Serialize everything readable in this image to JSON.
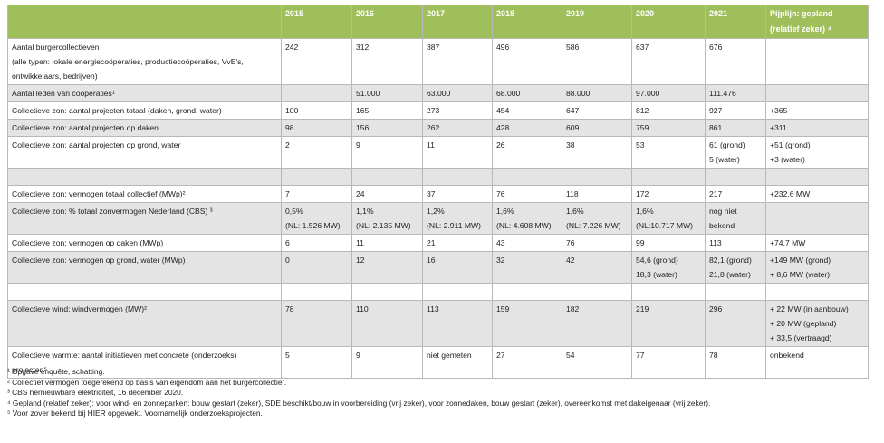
{
  "table": {
    "header": [
      null,
      "2015",
      "2016",
      "2017",
      "2018",
      "2019",
      "2020",
      "2021",
      "Pijplijn: gepland (relatief zeker) ⁴"
    ],
    "rows": [
      [
        [
          "Aantal burgercollectieven",
          "(alle typen: lokale energiecoöperaties, productiecoöperaties, VvE's,",
          "ontwikkelaars, bedrijven)"
        ],
        [
          "242"
        ],
        [
          "312"
        ],
        [
          "387"
        ],
        [
          "496"
        ],
        [
          "586"
        ],
        [
          "637"
        ],
        [
          "676"
        ],
        null
      ],
      [
        [
          "Aantal leden van coöperaties¹"
        ],
        null,
        [
          "51.000"
        ],
        [
          "63.000"
        ],
        [
          "68.000"
        ],
        [
          "88.000"
        ],
        [
          "97.000"
        ],
        [
          "111.476"
        ],
        null
      ],
      [
        [
          "Collectieve zon: aantal projecten totaal (daken, grond, water)"
        ],
        [
          "100"
        ],
        [
          "165"
        ],
        [
          "273"
        ],
        [
          "454"
        ],
        [
          "647"
        ],
        [
          "812"
        ],
        [
          "927"
        ],
        [
          "+365"
        ]
      ],
      [
        [
          "Collectieve zon: aantal projecten op daken"
        ],
        [
          "98"
        ],
        [
          "156"
        ],
        [
          "262"
        ],
        [
          "428"
        ],
        [
          "609"
        ],
        [
          "759"
        ],
        [
          "861"
        ],
        [
          "+311"
        ]
      ],
      [
        [
          "Collectieve zon: aantal projecten op grond, water"
        ],
        [
          "2"
        ],
        [
          "9"
        ],
        [
          "11"
        ],
        [
          "26"
        ],
        [
          "38"
        ],
        [
          "53"
        ],
        [
          "61 (grond)",
          "5 (water)"
        ],
        [
          "+51 (grond)",
          "+3 (water)"
        ]
      ],
      [
        null,
        null,
        null,
        null,
        null,
        null,
        null,
        null,
        null
      ],
      [
        [
          "Collectieve zon: vermogen totaal collectief (MWp)²"
        ],
        [
          "7"
        ],
        [
          "24"
        ],
        [
          "37"
        ],
        [
          "76"
        ],
        [
          "118"
        ],
        [
          "172"
        ],
        [
          "217"
        ],
        [
          "+232,6 MW"
        ]
      ],
      [
        [
          "Collectieve zon: % totaal zonvermogen Nederland (CBS) ³"
        ],
        [
          "0,5%",
          "(NL: 1.526 MW)"
        ],
        [
          "1,1%",
          "(NL: 2.135 MW)"
        ],
        [
          "1,2%",
          "(NL: 2.911 MW)"
        ],
        [
          "1,6%",
          "(NL: 4.608 MW)"
        ],
        [
          "1,6%",
          "(NL: 7.226 MW)"
        ],
        [
          "1,6%",
          "(NL:10.717 MW)"
        ],
        [
          "nog niet",
          "bekend"
        ],
        null
      ],
      [
        [
          "Collectieve zon: vermogen op daken (MWp)"
        ],
        [
          "6"
        ],
        [
          "11"
        ],
        [
          "21"
        ],
        [
          "43"
        ],
        [
          "76"
        ],
        [
          "99"
        ],
        [
          "113"
        ],
        [
          "+74,7 MW"
        ]
      ],
      [
        [
          "Collectieve zon: vermogen op grond, water (MWp)"
        ],
        [
          "0"
        ],
        [
          "12"
        ],
        [
          "16"
        ],
        [
          "32"
        ],
        [
          "42"
        ],
        [
          "54,6 (grond)",
          "18,3 (water)"
        ],
        [
          "82,1 (grond)",
          "21,8 (water)"
        ],
        [
          "+149 MW (grond)",
          "+ 8,6 MW (water)"
        ]
      ],
      [
        null,
        null,
        null,
        null,
        null,
        null,
        null,
        null,
        null
      ],
      [
        [
          "Collectieve wind: windvermogen (MW)²"
        ],
        [
          "78"
        ],
        [
          "110"
        ],
        [
          "113"
        ],
        [
          "159"
        ],
        [
          "182"
        ],
        [
          "219"
        ],
        [
          "296"
        ],
        [
          "+ 22 MW (in aanbouw)",
          "+ 20 MW (gepland)",
          "+ 33,5 (vertraagd)"
        ]
      ],
      [
        [
          "Collectieve warmte: aantal initiatieven met concrete (onderzoeks)",
          "projecten⁵"
        ],
        [
          "5"
        ],
        [
          "9"
        ],
        [
          "niet gemeten"
        ],
        [
          "27"
        ],
        [
          "54"
        ],
        [
          "77"
        ],
        [
          "78"
        ],
        [
          "onbekend"
        ]
      ]
    ]
  },
  "footnotes": [
    "¹ Opgave enquête, schatting.",
    "² Collectief vermogen toegerekend op basis van eigendom aan het burgercollectief.",
    "³ CBS hernieuwbare elektriciteit, 16 december 2020.",
    "⁴ Gepland (relatief zeker): voor wind- en zonneparken: bouw gestart (zeker), SDE beschikt/bouw in voorbereiding (vrij zeker), voor zonnedaken, bouw gestart (zeker), overeenkomst met dakeigenaar (vrij zeker).",
    "⁵ Voor zover bekend bij HIER opgewekt. Voornamelijk onderzoeksprojecten."
  ]
}
